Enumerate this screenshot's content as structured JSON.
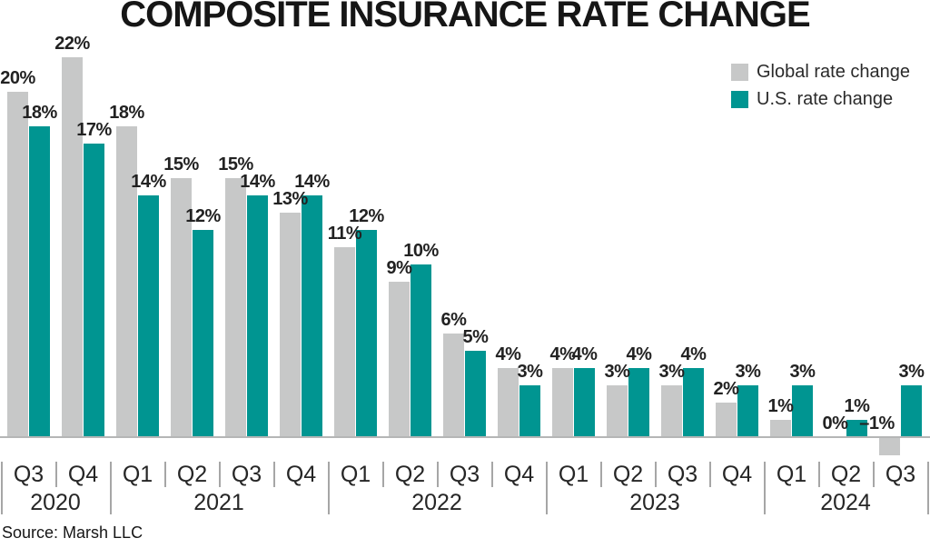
{
  "title": "COMPOSITE INSURANCE RATE CHANGE",
  "source": "Source: Marsh LLC",
  "colors": {
    "global_series": "#c7c8c8",
    "us_series": "#009591",
    "axis_line": "#b5b6b6",
    "divider": "#a6a6a6",
    "label_text": "#222222"
  },
  "legend": {
    "position": "top-right",
    "items": [
      {
        "label": "Global rate change",
        "color": "#c7c8c8"
      },
      {
        "label": "U.S. rate change",
        "color": "#009591"
      }
    ]
  },
  "chart_data": {
    "type": "bar",
    "title": "COMPOSITE INSURANCE RATE CHANGE",
    "xlabel": "",
    "ylabel": "",
    "ylim": [
      -2,
      24
    ],
    "grid": false,
    "value_labels": true,
    "legend_position": "top-right",
    "quarters": [
      "Q3",
      "Q4",
      "Q1",
      "Q2",
      "Q3",
      "Q4",
      "Q1",
      "Q2",
      "Q3",
      "Q4",
      "Q1",
      "Q2",
      "Q3",
      "Q4",
      "Q1",
      "Q2",
      "Q3"
    ],
    "years": [
      {
        "label": "2020",
        "quarters": 2
      },
      {
        "label": "2021",
        "quarters": 4
      },
      {
        "label": "2022",
        "quarters": 4
      },
      {
        "label": "2023",
        "quarters": 4
      },
      {
        "label": "2024",
        "quarters": 3
      }
    ],
    "series": [
      {
        "name": "Global rate change",
        "color": "#c7c8c8",
        "values": [
          20,
          22,
          18,
          15,
          15,
          13,
          11,
          9,
          6,
          4,
          4,
          3,
          3,
          2,
          1,
          0,
          -1
        ],
        "labels": [
          "20%",
          "22%",
          "18%",
          "15%",
          "15%",
          "13%",
          "11%",
          "9%",
          "6%",
          "4%",
          "4%",
          "3%",
          "3%",
          "2%",
          "1%",
          "0%",
          "–1%"
        ]
      },
      {
        "name": "U.S. rate change",
        "color": "#009591",
        "values": [
          18,
          17,
          14,
          12,
          14,
          14,
          12,
          10,
          5,
          3,
          4,
          4,
          4,
          3,
          3,
          1,
          3
        ],
        "labels": [
          "18%",
          "17%",
          "14%",
          "12%",
          "14%",
          "14%",
          "12%",
          "10%",
          "5%",
          "3%",
          "4%",
          "4%",
          "4%",
          "3%",
          "3%",
          "1%",
          "3%"
        ]
      }
    ]
  }
}
